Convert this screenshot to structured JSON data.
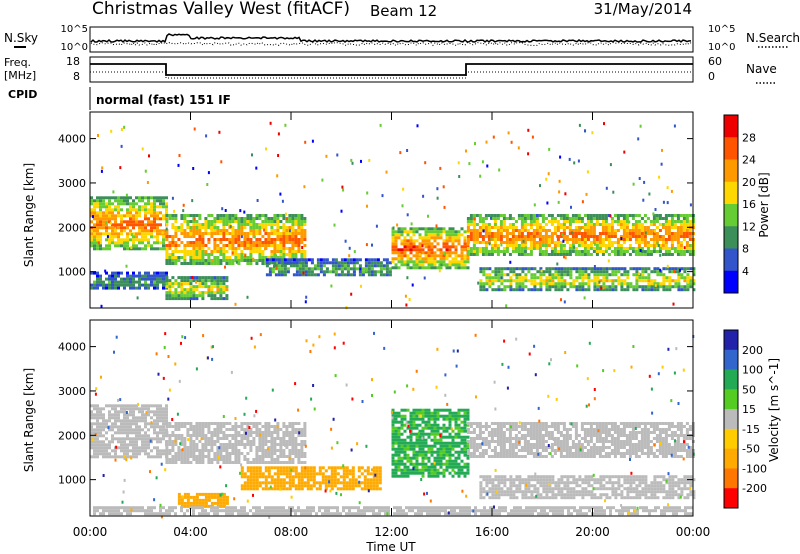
{
  "header": {
    "title": "Christmas Valley West (fitACF)",
    "beam": "Beam 12",
    "date": "31/May/2014"
  },
  "status_panels": {
    "nsky_label": "N.Sky",
    "nsky_ticks": [
      "10^5",
      "10^0"
    ],
    "nsearch_label": "N.Search",
    "nsearch_ticks": [
      "10^5",
      "10^0"
    ],
    "freq_label": "Freq.",
    "freq_unit": "[MHz]",
    "freq_ticks": [
      "18",
      "8"
    ],
    "nave_label": "Nave",
    "nave_ticks": [
      "60",
      "0"
    ],
    "cpid_label": "CPID",
    "cpid_text": "normal (fast) 151 IF"
  },
  "x_axis": {
    "label": "Time UT",
    "ticks": [
      "00:00",
      "04:00",
      "08:00",
      "12:00",
      "16:00",
      "20:00",
      "00:00"
    ]
  },
  "colors": {
    "power": [
      "#0000ff",
      "#3355cc",
      "#3d8f5a",
      "#66cc33",
      "#ffd700",
      "#ff9900",
      "#ff5500",
      "#ee0000"
    ],
    "velocity": [
      "#2222aa",
      "#3366cc",
      "#22aa55",
      "#55cc22",
      "#bbbbbb",
      "#ffcc00",
      "#ffaa00",
      "#ff7700",
      "#ff0000"
    ]
  },
  "chart_data": [
    {
      "type": "heatmap",
      "panel": "power",
      "ylabel": "Slant Range [km]",
      "yticks": [
        "4000",
        "3000",
        "2000",
        "1000"
      ],
      "colorbar_label": "Power [dB]",
      "colorbar_ticks": [
        "28",
        "24",
        "20",
        "16",
        "12",
        "8",
        "4"
      ],
      "xlim": [
        0,
        24
      ],
      "ylim": [
        180,
        4600
      ],
      "echo_regions": [
        {
          "x0": 0.0,
          "x1": 3.0,
          "y0": 1500,
          "y1": 2700,
          "power": 24
        },
        {
          "x0": 0.0,
          "x1": 3.0,
          "y0": 600,
          "y1": 1000,
          "power": 10
        },
        {
          "x0": 3.0,
          "x1": 8.5,
          "y0": 1200,
          "y1": 2300,
          "power": 24
        },
        {
          "x0": 3.0,
          "x1": 5.5,
          "y0": 400,
          "y1": 900,
          "power": 18
        },
        {
          "x0": 7.0,
          "x1": 12.0,
          "y0": 900,
          "y1": 1300,
          "power": 12
        },
        {
          "x0": 12.0,
          "x1": 15.0,
          "y0": 1100,
          "y1": 2000,
          "power": 26
        },
        {
          "x0": 15.0,
          "x1": 24.0,
          "y0": 1400,
          "y1": 2300,
          "power": 24
        },
        {
          "x0": 15.5,
          "x1": 24.0,
          "y0": 600,
          "y1": 1100,
          "power": 18
        }
      ]
    },
    {
      "type": "heatmap",
      "panel": "velocity",
      "ylabel": "Slant Range [km]",
      "yticks": [
        "4000",
        "3000",
        "2000",
        "1000"
      ],
      "colorbar_label": "Velocity [m s^-1]",
      "colorbar_ticks": [
        "200",
        "100",
        "50",
        "15",
        "-15",
        "-50",
        "-100",
        "-200"
      ],
      "xlim": [
        0,
        24
      ],
      "ylim": [
        180,
        4600
      ],
      "echo_regions": [
        {
          "x0": 0.0,
          "x1": 3.0,
          "y0": 1500,
          "y1": 2700,
          "velocity": 0
        },
        {
          "x0": 3.0,
          "x1": 8.5,
          "y0": 1400,
          "y1": 2300,
          "velocity": 0
        },
        {
          "x0": 6.0,
          "x1": 11.5,
          "y0": 800,
          "y1": 1300,
          "velocity": -60
        },
        {
          "x0": 3.5,
          "x1": 5.5,
          "y0": 400,
          "y1": 700,
          "velocity": -60
        },
        {
          "x0": 12.0,
          "x1": 15.0,
          "y0": 1100,
          "y1": 2600,
          "velocity": 40
        },
        {
          "x0": 15.0,
          "x1": 24.0,
          "y0": 1500,
          "y1": 2300,
          "velocity": 0
        },
        {
          "x0": 15.5,
          "x1": 24.0,
          "y0": 600,
          "y1": 1100,
          "velocity": 0
        },
        {
          "x0": 0.0,
          "x1": 24.0,
          "y0": 200,
          "y1": 400,
          "velocity": 0
        }
      ]
    }
  ]
}
